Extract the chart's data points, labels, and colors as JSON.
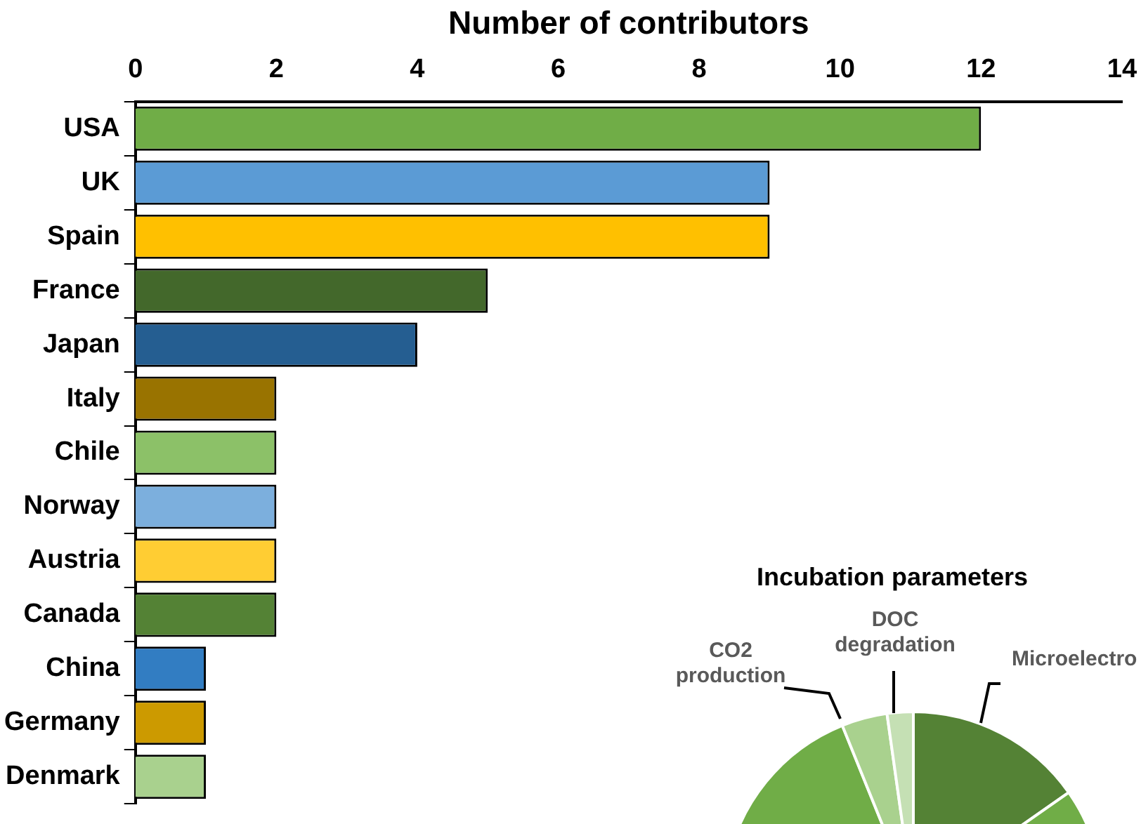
{
  "chart_data": [
    {
      "type": "bar",
      "orientation": "horizontal",
      "xlabel": "Number of contributors",
      "categories": [
        "USA",
        "UK",
        "Spain",
        "France",
        "Japan",
        "Italy",
        "Chile",
        "Norway",
        "Austria",
        "Canada",
        "China",
        "Germany",
        "Denmark"
      ],
      "values": [
        12,
        9,
        9,
        5,
        4,
        2,
        2,
        2,
        2,
        2,
        1,
        1,
        1
      ],
      "colors": [
        "#70ad47",
        "#5b9bd5",
        "#ffc000",
        "#43682b",
        "#255e91",
        "#997300",
        "#8cc168",
        "#7cafdd",
        "#ffcd33",
        "#548235",
        "#327dc2",
        "#cc9a00",
        "#a9d18e"
      ],
      "xlim": [
        0,
        14
      ],
      "xticks": [
        0,
        2,
        4,
        6,
        8,
        10,
        12,
        14
      ],
      "grid": false,
      "legend": false
    },
    {
      "type": "other",
      "title": "Incubation parameters",
      "annotations": [
        "CO2 production",
        "DOC degradation",
        "Microelectro"
      ]
    }
  ]
}
